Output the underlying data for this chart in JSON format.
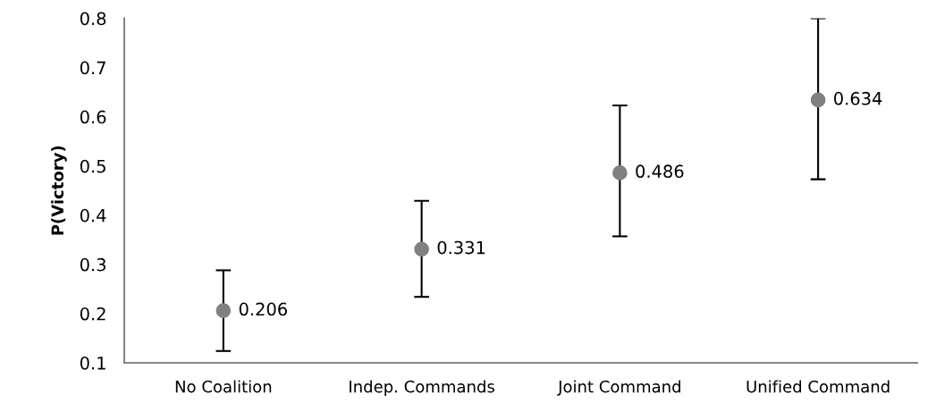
{
  "chart_data": {
    "type": "scatter",
    "ylabel": "P(Victory)",
    "categories": [
      "No Coalition",
      "Indep. Commands",
      "Joint Command",
      "Unified Command"
    ],
    "values": [
      0.206,
      0.331,
      0.486,
      0.634
    ],
    "errors": [
      [
        0.124,
        0.288
      ],
      [
        0.234,
        0.429
      ],
      [
        0.357,
        0.623
      ],
      [
        0.473,
        0.8
      ]
    ],
    "color": "#808080",
    "marker": "circle",
    "data_labels": true,
    "ylim": [
      0.1,
      0.8
    ],
    "yticks": [
      0.1,
      0.2,
      0.3,
      0.4,
      0.5,
      0.6,
      0.7,
      0.8
    ],
    "grid": false,
    "legend": false
  }
}
